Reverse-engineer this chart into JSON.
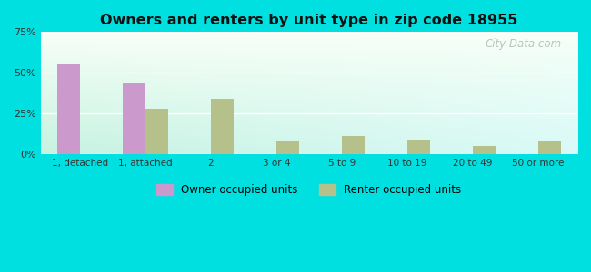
{
  "title": "Owners and renters by unit type in zip code 18955",
  "categories": [
    "1, detached",
    "1, attached",
    "2",
    "3 or 4",
    "5 to 9",
    "10 to 19",
    "20 to 49",
    "50 or more"
  ],
  "owner_values": [
    55,
    44,
    0,
    0,
    0,
    0,
    0,
    0
  ],
  "renter_values": [
    0,
    28,
    34,
    8,
    11,
    9,
    5,
    8
  ],
  "owner_color": "#cc99cc",
  "renter_color": "#b5c08b",
  "ylim": [
    0,
    75
  ],
  "yticks": [
    0,
    25,
    50,
    75
  ],
  "ytick_labels": [
    "0%",
    "25%",
    "50%",
    "75%"
  ],
  "legend_owner": "Owner occupied units",
  "legend_renter": "Renter occupied units",
  "outer_bg": "#00e0e0",
  "watermark": "City-Data.com",
  "bar_width": 0.35
}
